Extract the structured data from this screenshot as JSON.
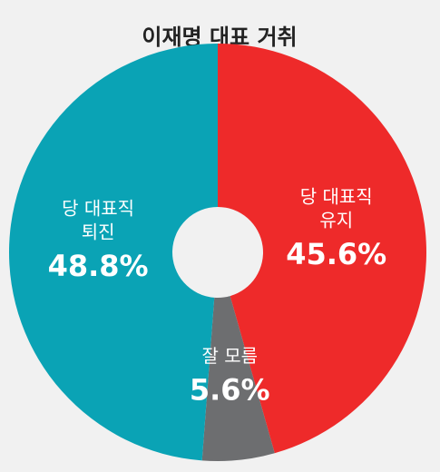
{
  "chart_data": {
    "type": "donut",
    "title": "이재명 대표 거취",
    "categories": [
      [
        "당 대표직",
        "유지"
      ],
      [
        "잘 모름"
      ],
      [
        "당 대표직",
        "퇴진"
      ]
    ],
    "values": [
      45.6,
      5.6,
      48.8
    ],
    "value_labels": [
      "45.6%",
      "5.6%",
      "48.8%"
    ],
    "colors": [
      "#ee2a2a",
      "#6d6e70",
      "#0aa3b5"
    ]
  }
}
